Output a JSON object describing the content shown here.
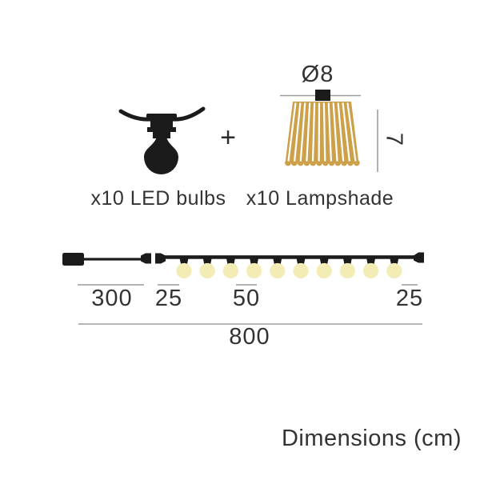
{
  "colors": {
    "ink": "#1b1b1b",
    "text": "#333333",
    "dim_line": "#9c9c9c",
    "lampshade_gold": "#cda04a",
    "bulb_glow": "#f3edb5"
  },
  "kit_row": {
    "plus_sign": "+",
    "led_bulbs_label": "x10 LED bulbs",
    "lampshade_label": "x10 Lampshade",
    "lampshade_diameter": "Ø8",
    "lampshade_height": "7"
  },
  "string_diagram": {
    "bulb_count": 10,
    "lead_length": "300",
    "start_offset": "25",
    "bulb_spacing": "50",
    "end_offset": "25",
    "total_length": "800"
  },
  "footer": {
    "title": "Dimensions (cm)"
  }
}
